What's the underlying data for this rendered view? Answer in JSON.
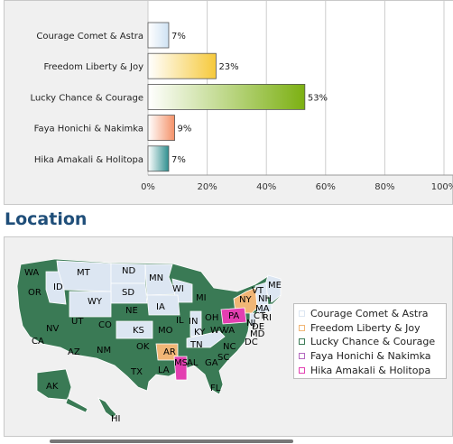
{
  "chart_data": {
    "type": "bar",
    "orientation": "horizontal",
    "categories": [
      "Courage Comet & Astra",
      "Freedom Liberty & Joy",
      "Lucky Chance & Courage",
      "Faya Honichi & Nakimka",
      "Hika Amakali & Holitopa"
    ],
    "values": [
      7,
      23,
      53,
      9,
      7
    ],
    "value_labels": [
      "7%",
      "23%",
      "53%",
      "9%",
      "7%"
    ],
    "xlim": [
      0,
      100
    ],
    "xticks": [
      "0%",
      "20%",
      "40%",
      "60%",
      "80%",
      "100%"
    ],
    "grid": true,
    "colors": [
      "#cfe2f3",
      "#f6c93b",
      "#8ab81f",
      "#f3a07a",
      "#3e9d9d"
    ]
  },
  "location": {
    "title": "Location",
    "legend": [
      {
        "label": "Courage Comet & Astra",
        "color": "#dce6f2"
      },
      {
        "label": "Freedom Liberty & Joy",
        "color": "#f1b676"
      },
      {
        "label": "Lucky Chance & Courage",
        "color": "#3a7a55"
      },
      {
        "label": "Faya Honichi & Nakimka",
        "color": "#b36abf"
      },
      {
        "label": "Hika Amakali & Holitopa",
        "color": "#e33fb1"
      }
    ],
    "state_labels": [
      "WA",
      "MT",
      "ND",
      "MN",
      "ME",
      "OR",
      "ID",
      "SD",
      "WI",
      "VT",
      "NH",
      "WY",
      "NY",
      "MA",
      "MI",
      "NE",
      "IA",
      "PA",
      "CT",
      "RI",
      "NJ",
      "NV",
      "UT",
      "CO",
      "IL",
      "IN",
      "OH",
      "DE",
      "MD",
      "DC",
      "CA",
      "KS",
      "MO",
      "WV",
      "VA",
      "KY",
      "NC",
      "AZ",
      "NM",
      "OK",
      "AR",
      "TN",
      "SC",
      "GA",
      "MS",
      "AL",
      "TX",
      "LA",
      "FL",
      "AK",
      "HI"
    ]
  }
}
